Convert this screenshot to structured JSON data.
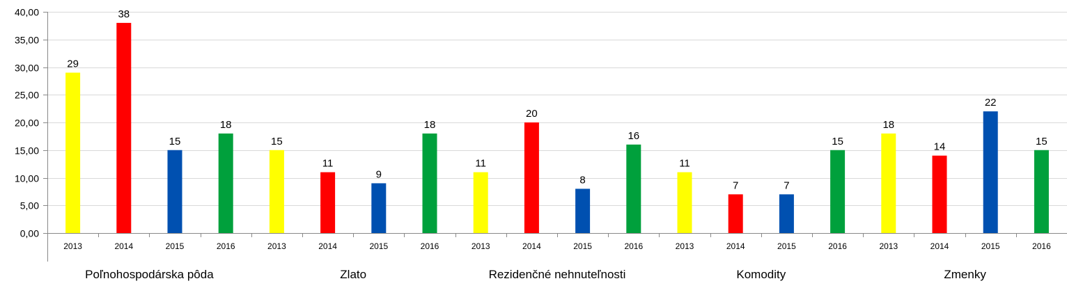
{
  "chart_data": {
    "type": "bar",
    "title": "",
    "xlabel": "",
    "ylabel": "",
    "ylim": [
      0,
      40
    ],
    "yticks": [
      "0,00",
      "5,00",
      "10,00",
      "15,00",
      "20,00",
      "25,00",
      "30,00",
      "35,00",
      "40,00"
    ],
    "grid": true,
    "legend": "none",
    "groups": [
      {
        "label": "Poľnohospodárska pôda",
        "bars": [
          {
            "year": "2013",
            "value": 29,
            "label": "29",
            "color": "#FFFF00"
          },
          {
            "year": "2014",
            "value": 38,
            "label": "38",
            "color": "#FF0000"
          },
          {
            "year": "2015",
            "value": 15,
            "label": "15",
            "color": "#0050B0"
          },
          {
            "year": "2016",
            "value": 18,
            "label": "18",
            "color": "#00A03C"
          }
        ]
      },
      {
        "label": "Zlato",
        "bars": [
          {
            "year": "2013",
            "value": 15,
            "label": "15",
            "color": "#FFFF00"
          },
          {
            "year": "2014",
            "value": 11,
            "label": "11",
            "color": "#FF0000"
          },
          {
            "year": "2015",
            "value": 9,
            "label": "9",
            "color": "#0050B0"
          },
          {
            "year": "2016",
            "value": 18,
            "label": "18",
            "color": "#00A03C"
          }
        ]
      },
      {
        "label": "Rezidenčné nehnuteľnosti",
        "bars": [
          {
            "year": "2013",
            "value": 11,
            "label": "11",
            "color": "#FFFF00"
          },
          {
            "year": "2014",
            "value": 20,
            "label": "20",
            "color": "#FF0000"
          },
          {
            "year": "2015",
            "value": 8,
            "label": "8",
            "color": "#0050B0"
          },
          {
            "year": "2016",
            "value": 16,
            "label": "16",
            "color": "#00A03C"
          }
        ]
      },
      {
        "label": "Komodity",
        "bars": [
          {
            "year": "2013",
            "value": 11,
            "label": "11",
            "color": "#FFFF00"
          },
          {
            "year": "2014",
            "value": 7,
            "label": "7",
            "color": "#FF0000"
          },
          {
            "year": "2015",
            "value": 7,
            "label": "7",
            "color": "#0050B0"
          },
          {
            "year": "2016",
            "value": 15,
            "label": "15",
            "color": "#00A03C"
          }
        ]
      },
      {
        "label": "Zmenky",
        "bars": [
          {
            "year": "2013",
            "value": 18,
            "label": "18",
            "color": "#FFFF00"
          },
          {
            "year": "2014",
            "value": 14,
            "label": "14",
            "color": "#FF0000"
          },
          {
            "year": "2015",
            "value": 22,
            "label": "22",
            "color": "#0050B0"
          },
          {
            "year": "2016",
            "value": 15,
            "label": "15",
            "color": "#00A03C"
          }
        ]
      }
    ]
  }
}
